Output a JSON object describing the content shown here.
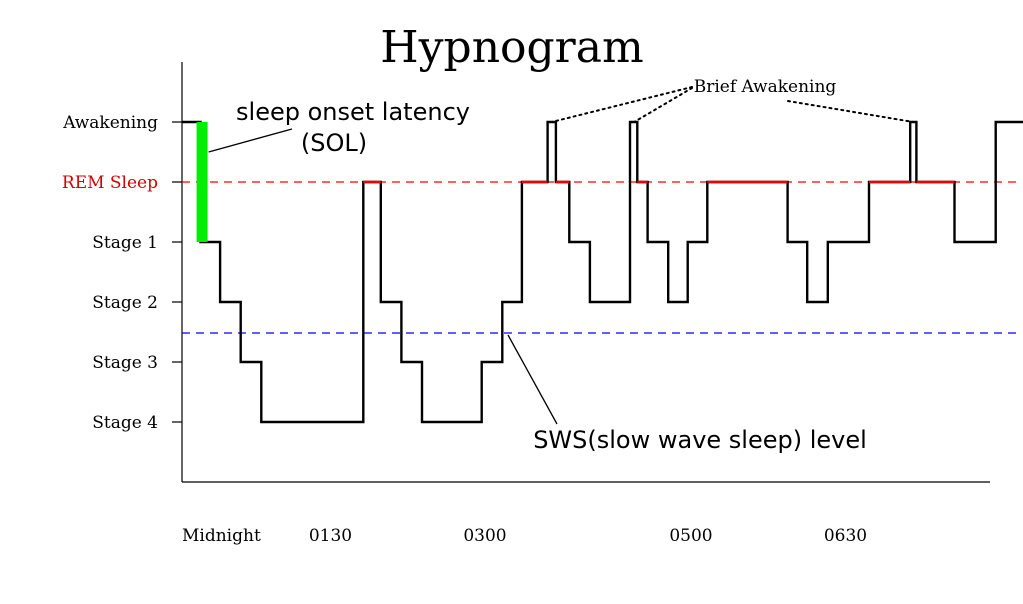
{
  "chart_data": {
    "type": "line",
    "title": "Hypnogram",
    "y_categories": [
      "Awakening",
      "REM Sleep",
      "Stage 1",
      "Stage 2",
      "Stage 3",
      "Stage 4"
    ],
    "y_category_colors": {
      "REM Sleep": "#d40000"
    },
    "x_tick_labels": [
      "Midnight",
      "0130",
      "0300",
      "0500",
      "0630"
    ],
    "x_tick_positions_hours": [
      0,
      1.5,
      3,
      5,
      6.5
    ],
    "x_range_hours": [
      0,
      8.7
    ],
    "series": [
      {
        "points": [
          {
            "x": 0.0,
            "y": "Awakening"
          },
          {
            "x": 0.18,
            "y": "Awakening"
          },
          {
            "x": 0.18,
            "y": "Stage 1"
          },
          {
            "x": 0.37,
            "y": "Stage 1"
          },
          {
            "x": 0.37,
            "y": "Stage 2"
          },
          {
            "x": 0.57,
            "y": "Stage 2"
          },
          {
            "x": 0.57,
            "y": "Stage 3"
          },
          {
            "x": 0.77,
            "y": "Stage 3"
          },
          {
            "x": 0.77,
            "y": "Stage 4"
          },
          {
            "x": 1.76,
            "y": "Stage 4"
          },
          {
            "x": 1.76,
            "y": "REM Sleep"
          },
          {
            "x": 1.93,
            "y": "REM Sleep"
          },
          {
            "x": 1.93,
            "y": "Stage 2"
          },
          {
            "x": 2.13,
            "y": "Stage 2"
          },
          {
            "x": 2.13,
            "y": "Stage 3"
          },
          {
            "x": 2.33,
            "y": "Stage 3"
          },
          {
            "x": 2.33,
            "y": "Stage 4"
          },
          {
            "x": 2.91,
            "y": "Stage 4"
          },
          {
            "x": 2.91,
            "y": "Stage 3"
          },
          {
            "x": 3.11,
            "y": "Stage 3"
          },
          {
            "x": 3.11,
            "y": "Stage 2"
          },
          {
            "x": 3.3,
            "y": "Stage 2"
          },
          {
            "x": 3.3,
            "y": "REM Sleep"
          },
          {
            "x": 3.55,
            "y": "REM Sleep"
          },
          {
            "x": 3.55,
            "y": "Awakening"
          },
          {
            "x": 3.63,
            "y": "Awakening"
          },
          {
            "x": 3.63,
            "y": "REM Sleep"
          },
          {
            "x": 3.76,
            "y": "REM Sleep"
          },
          {
            "x": 3.76,
            "y": "Stage 1"
          },
          {
            "x": 3.96,
            "y": "Stage 1"
          },
          {
            "x": 3.96,
            "y": "Stage 2"
          },
          {
            "x": 4.35,
            "y": "Stage 2"
          },
          {
            "x": 4.35,
            "y": "Awakening"
          },
          {
            "x": 4.42,
            "y": "Awakening"
          },
          {
            "x": 4.42,
            "y": "REM Sleep"
          },
          {
            "x": 4.52,
            "y": "REM Sleep"
          },
          {
            "x": 4.52,
            "y": "Stage 1"
          },
          {
            "x": 4.72,
            "y": "Stage 1"
          },
          {
            "x": 4.72,
            "y": "Stage 2"
          },
          {
            "x": 4.91,
            "y": "Stage 2"
          },
          {
            "x": 4.91,
            "y": "Stage 1"
          },
          {
            "x": 5.1,
            "y": "Stage 1"
          },
          {
            "x": 5.1,
            "y": "REM Sleep"
          },
          {
            "x": 5.88,
            "y": "REM Sleep"
          },
          {
            "x": 5.88,
            "y": "Stage 1"
          },
          {
            "x": 6.07,
            "y": "Stage 1"
          },
          {
            "x": 6.07,
            "y": "Stage 2"
          },
          {
            "x": 6.27,
            "y": "Stage 2"
          },
          {
            "x": 6.27,
            "y": "Stage 1"
          },
          {
            "x": 6.67,
            "y": "Stage 1"
          },
          {
            "x": 6.67,
            "y": "REM Sleep"
          },
          {
            "x": 7.07,
            "y": "REM Sleep"
          },
          {
            "x": 7.07,
            "y": "Awakening"
          },
          {
            "x": 7.13,
            "y": "Awakening"
          },
          {
            "x": 7.13,
            "y": "REM Sleep"
          },
          {
            "x": 7.5,
            "y": "REM Sleep"
          },
          {
            "x": 7.5,
            "y": "Stage 1"
          },
          {
            "x": 7.9,
            "y": "Stage 1"
          },
          {
            "x": 7.9,
            "y": "Awakening"
          },
          {
            "x": 8.55,
            "y": "Awakening"
          }
        ]
      }
    ],
    "rem_segments_hours": [
      [
        1.76,
        1.93
      ],
      [
        3.3,
        3.55
      ],
      [
        3.63,
        3.76
      ],
      [
        4.42,
        4.52
      ],
      [
        5.1,
        5.88
      ],
      [
        6.67,
        7.07
      ],
      [
        7.13,
        7.5
      ]
    ],
    "reference_lines": [
      {
        "y": "REM Sleep",
        "color": "#ff0000",
        "style": "dashed"
      },
      {
        "y_between": [
          "Stage 2",
          "Stage 3"
        ],
        "color": "#0000ff",
        "style": "dashed"
      }
    ],
    "annotations": {
      "sol": {
        "line1": "sleep onset latency",
        "line2": "(SOL)",
        "color": "#00ee00",
        "y_from": "Awakening",
        "y_to": "Stage 1",
        "x_hours": 0.2
      },
      "brief_awakening": {
        "text": "Brief Awakening",
        "targets_hours": [
          3.59,
          4.39,
          7.1
        ]
      },
      "sws": {
        "text": "SWS(slow wave sleep) level"
      }
    },
    "grid": false,
    "legend": "none"
  }
}
